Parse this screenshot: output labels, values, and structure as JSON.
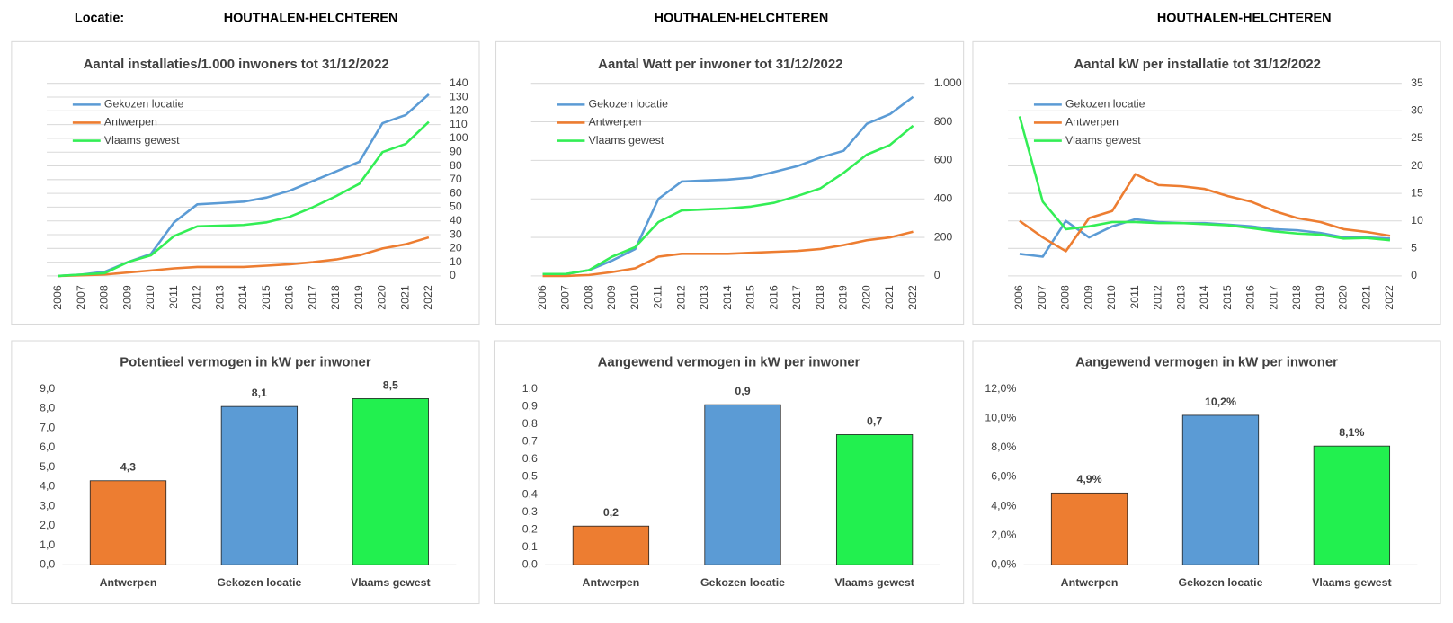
{
  "header": {
    "label": "Locatie:",
    "locations": [
      "HOUTHALEN-HELCHTEREN",
      "HOUTHALEN-HELCHTEREN",
      "HOUTHALEN-HELCHTEREN"
    ]
  },
  "chart_data": [
    {
      "type": "line",
      "title": "Aantal installaties/1.000  inwoners tot 31/12/2022",
      "categories": [
        "2006",
        "2007",
        "2008",
        "2009",
        "2010",
        "2011",
        "2012",
        "2013",
        "2014",
        "2015",
        "2016",
        "2017",
        "2018",
        "2019",
        "2020",
        "2021",
        "2022"
      ],
      "series": [
        {
          "name": "Gekozen locatie",
          "color": "#5b9bd5",
          "values": [
            0,
            1,
            3,
            10,
            16,
            39,
            52,
            53,
            54,
            57,
            62,
            69,
            76,
            83,
            111,
            117,
            132
          ]
        },
        {
          "name": "Antwerpen",
          "color": "#ed7d31",
          "values": [
            0,
            0.5,
            1,
            2.5,
            4,
            5.5,
            6.5,
            6.5,
            6.5,
            7.5,
            8.5,
            10,
            12,
            15,
            20,
            23,
            28
          ]
        },
        {
          "name": "Vlaams gewest",
          "color": "#33ee55",
          "values": [
            0,
            1,
            2,
            10,
            15,
            29,
            36,
            36.5,
            37,
            39,
            43,
            50,
            58,
            67,
            90,
            96,
            112
          ]
        }
      ],
      "ylim": [
        0,
        140
      ],
      "yticks": [
        0,
        10,
        20,
        30,
        40,
        50,
        60,
        70,
        80,
        90,
        100,
        110,
        120,
        130,
        140
      ],
      "grid": true,
      "legend": "upper left"
    },
    {
      "type": "line",
      "title": "Aantal Watt per inwoner tot 31/12/2022",
      "categories": [
        "2006",
        "2007",
        "2008",
        "2009",
        "2010",
        "2011",
        "2012",
        "2013",
        "2014",
        "2015",
        "2016",
        "2017",
        "2018",
        "2019",
        "2020",
        "2021",
        "2022"
      ],
      "series": [
        {
          "name": "Gekozen locatie",
          "color": "#5b9bd5",
          "values": [
            10,
            10,
            30,
            80,
            140,
            400,
            490,
            495,
            500,
            510,
            540,
            570,
            615,
            650,
            790,
            840,
            930
          ]
        },
        {
          "name": "Antwerpen",
          "color": "#ed7d31",
          "values": [
            0,
            0,
            5,
            20,
            40,
            100,
            115,
            115,
            115,
            120,
            125,
            130,
            140,
            160,
            185,
            200,
            230
          ]
        },
        {
          "name": "Vlaams gewest",
          "color": "#33ee55",
          "values": [
            10,
            10,
            30,
            100,
            150,
            280,
            340,
            345,
            350,
            360,
            380,
            415,
            455,
            535,
            630,
            680,
            780
          ]
        }
      ],
      "ylim": [
        0,
        1000
      ],
      "yticks": [
        0,
        200,
        400,
        600,
        800,
        {
          "value": 1000,
          "label": "1.000"
        }
      ],
      "grid": true,
      "legend": "upper left"
    },
    {
      "type": "line",
      "title": "Aantal kW per installatie  tot 31/12/2022",
      "categories": [
        "2006",
        "2007",
        "2008",
        "2009",
        "2010",
        "2011",
        "2012",
        "2013",
        "2014",
        "2015",
        "2016",
        "2017",
        "2018",
        "2019",
        "2020",
        "2021",
        "2022"
      ],
      "series": [
        {
          "name": "Gekozen locatie",
          "color": "#5b9bd5",
          "values": [
            4,
            3.5,
            10,
            7,
            9,
            10.3,
            9.8,
            9.6,
            9.6,
            9.3,
            9,
            8.5,
            8.3,
            7.8,
            7,
            7,
            6.8
          ]
        },
        {
          "name": "Antwerpen",
          "color": "#ed7d31",
          "values": [
            10,
            7,
            4.5,
            10.5,
            11.8,
            18.5,
            16.5,
            16.3,
            15.8,
            14.5,
            13.5,
            11.8,
            10.5,
            9.8,
            8.5,
            8,
            7.3
          ]
        },
        {
          "name": "Vlaams gewest",
          "color": "#33ee55",
          "values": [
            29,
            13.5,
            8.5,
            9,
            9.8,
            9.8,
            9.6,
            9.6,
            9.4,
            9.2,
            8.7,
            8.1,
            7.7,
            7.5,
            6.8,
            6.9,
            6.5
          ]
        }
      ],
      "ylim": [
        0,
        35
      ],
      "yticks": [
        0,
        5,
        10,
        15,
        20,
        25,
        30,
        35
      ],
      "grid": true,
      "legend": "upper left"
    },
    {
      "type": "bar",
      "title": "Potentieel vermogen in kW per inwoner",
      "categories": [
        "Antwerpen",
        "Gekozen locatie",
        "Vlaams gewest"
      ],
      "values": [
        4.3,
        8.1,
        8.5
      ],
      "value_labels": [
        "4,3",
        "8,1",
        "8,5"
      ],
      "colors": [
        "#ed7d31",
        "#5b9bd5",
        "#22f04f"
      ],
      "ylim": [
        0,
        9
      ],
      "yticks": [
        {
          "value": 0,
          "label": "0,0"
        },
        {
          "value": 1,
          "label": "1,0"
        },
        {
          "value": 2,
          "label": "2,0"
        },
        {
          "value": 3,
          "label": "3,0"
        },
        {
          "value": 4,
          "label": "4,0"
        },
        {
          "value": 5,
          "label": "5,0"
        },
        {
          "value": 6,
          "label": "6,0"
        },
        {
          "value": 7,
          "label": "7,0"
        },
        {
          "value": 8,
          "label": "8,0"
        },
        {
          "value": 9,
          "label": "9,0"
        }
      ],
      "grid": false
    },
    {
      "type": "bar",
      "title": "Aangewend vermogen in kW per inwoner",
      "categories": [
        "Antwerpen",
        "Gekozen locatie",
        "Vlaams gewest"
      ],
      "values": [
        0.22,
        0.91,
        0.74
      ],
      "value_labels": [
        "0,2",
        "0,9",
        "0,7"
      ],
      "colors": [
        "#ed7d31",
        "#5b9bd5",
        "#22f04f"
      ],
      "ylim": [
        0,
        1
      ],
      "yticks": [
        {
          "value": 0,
          "label": "0,0"
        },
        {
          "value": 0.1,
          "label": "0,1"
        },
        {
          "value": 0.2,
          "label": "0,2"
        },
        {
          "value": 0.3,
          "label": "0,3"
        },
        {
          "value": 0.4,
          "label": "0,4"
        },
        {
          "value": 0.5,
          "label": "0,5"
        },
        {
          "value": 0.6,
          "label": "0,6"
        },
        {
          "value": 0.7,
          "label": "0,7"
        },
        {
          "value": 0.8,
          "label": "0,8"
        },
        {
          "value": 0.9,
          "label": "0,9"
        },
        {
          "value": 1,
          "label": "1,0"
        }
      ],
      "grid": false
    },
    {
      "type": "bar",
      "title": "Aangewend vermogen in kW per inwoner",
      "categories": [
        "Antwerpen",
        "Gekozen locatie",
        "Vlaams gewest"
      ],
      "values": [
        4.9,
        10.2,
        8.1
      ],
      "value_labels": [
        "4,9%",
        "10,2%",
        "8,1%"
      ],
      "colors": [
        "#ed7d31",
        "#5b9bd5",
        "#22f04f"
      ],
      "ylim": [
        0,
        12
      ],
      "yticks": [
        {
          "value": 0,
          "label": "0,0%"
        },
        {
          "value": 2,
          "label": "2,0%"
        },
        {
          "value": 4,
          "label": "4,0%"
        },
        {
          "value": 6,
          "label": "6,0%"
        },
        {
          "value": 8,
          "label": "8,0%"
        },
        {
          "value": 10,
          "label": "10,0%"
        },
        {
          "value": 12,
          "label": "12,0%"
        }
      ],
      "grid": false
    }
  ]
}
